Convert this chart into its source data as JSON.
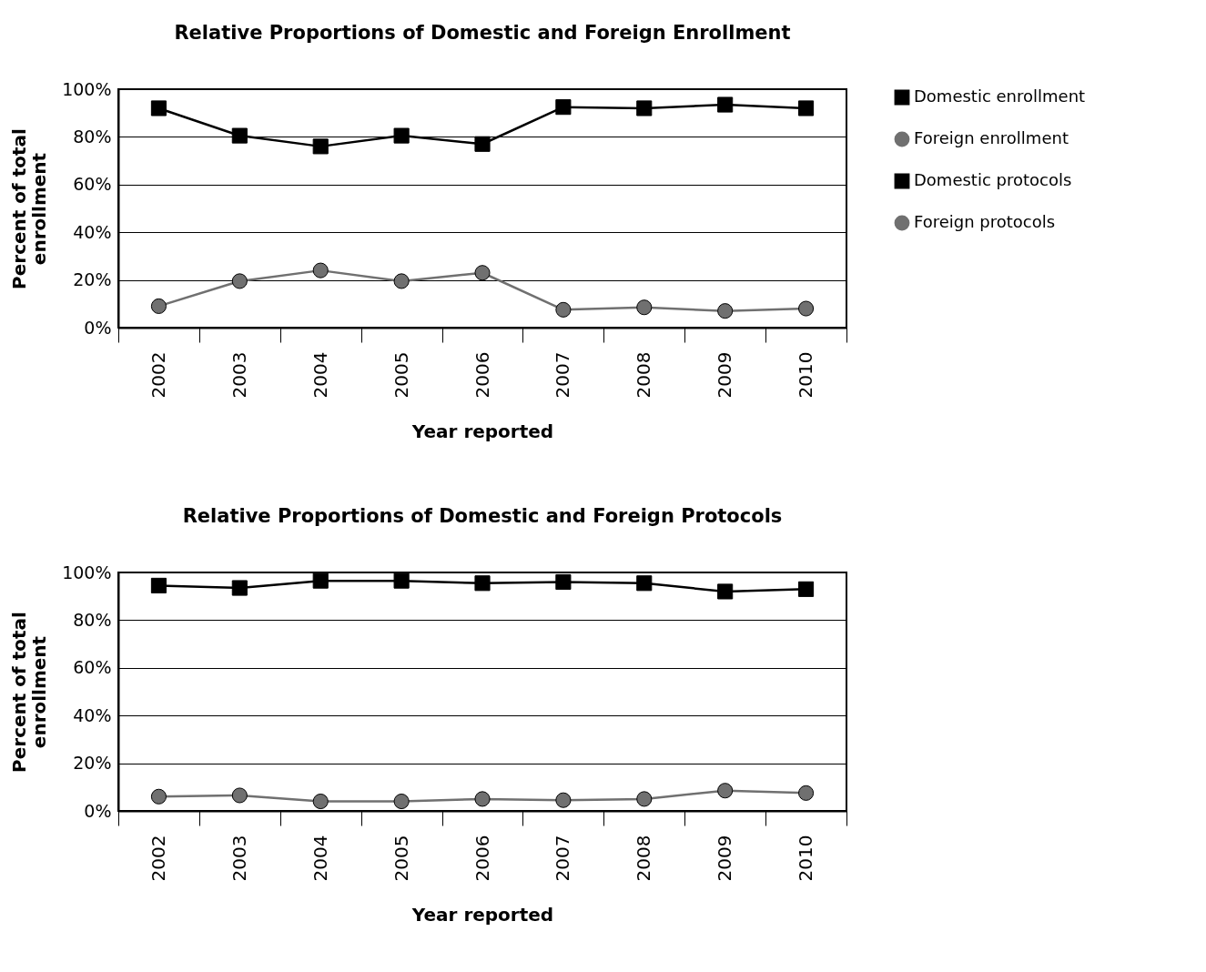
{
  "chart_data": [
    {
      "type": "line",
      "title": "Relative Proportions of Domestic and Foreign Enrollment",
      "xlabel": "Year reported",
      "ylabel": "Percent of total enrollment",
      "categories": [
        "2002",
        "2003",
        "2004",
        "2005",
        "2006",
        "2007",
        "2008",
        "2009",
        "2010"
      ],
      "series": [
        {
          "name": "Domestic enrollment",
          "color": "#000000",
          "marker": "square",
          "values": [
            92,
            80.5,
            76,
            80.5,
            77,
            92.5,
            92,
            93.5,
            92
          ]
        },
        {
          "name": "Foreign enrollment",
          "color": "#707070",
          "marker": "circle",
          "values": [
            9,
            19.5,
            24,
            19.5,
            23,
            7.5,
            8.5,
            7,
            8
          ]
        }
      ],
      "ylim": [
        0,
        100
      ],
      "yticks": [
        {
          "value": 0,
          "label": "0%"
        },
        {
          "value": 20,
          "label": "20%"
        },
        {
          "value": 40,
          "label": "40%"
        },
        {
          "value": 60,
          "label": "60%"
        },
        {
          "value": 80,
          "label": "80%"
        },
        {
          "value": 100,
          "label": "100%"
        }
      ],
      "grid": "y",
      "legend": "right"
    },
    {
      "type": "line",
      "title": "Relative Proportions of Domestic and Foreign Protocols",
      "xlabel": "Year reported",
      "ylabel": "Percent of total enrollment",
      "categories": [
        "2002",
        "2003",
        "2004",
        "2005",
        "2006",
        "2007",
        "2008",
        "2009",
        "2010"
      ],
      "series": [
        {
          "name": "Domestic protocols",
          "color": "#000000",
          "marker": "square",
          "values": [
            94.5,
            93.5,
            96.5,
            96.5,
            95.5,
            96,
            95.5,
            92,
            93
          ]
        },
        {
          "name": "Foreign protocols",
          "color": "#707070",
          "marker": "circle",
          "values": [
            6,
            6.5,
            4,
            4,
            5,
            4.5,
            5,
            8.5,
            7.5
          ]
        }
      ],
      "ylim": [
        0,
        100
      ],
      "yticks": [
        {
          "value": 0,
          "label": "0%"
        },
        {
          "value": 20,
          "label": "20%"
        },
        {
          "value": 40,
          "label": "40%"
        },
        {
          "value": 60,
          "label": "60%"
        },
        {
          "value": 80,
          "label": "80%"
        },
        {
          "value": 100,
          "label": "100%"
        }
      ],
      "grid": "y",
      "legend": "right"
    }
  ]
}
